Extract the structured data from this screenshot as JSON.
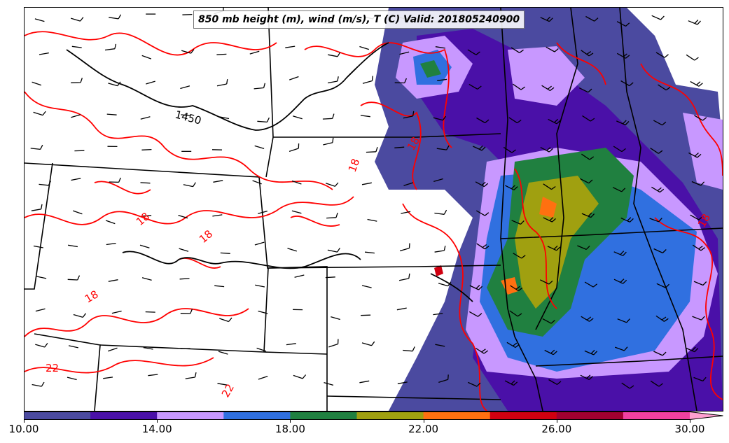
{
  "title": "850 mb height (m), wind (m/s), T (C) Valid: 201805240900",
  "contour_labels": {
    "height": "1450",
    "temps": [
      "18",
      "18",
      "18",
      "18",
      "18",
      "18",
      "22",
      "22",
      "18"
    ]
  },
  "colorbar": {
    "colors": [
      "#4b4aa0",
      "#4a10a8",
      "#c898ff",
      "#3070e0",
      "#208040",
      "#a0a010",
      "#ff7010",
      "#d00010",
      "#a00030",
      "#f040a0"
    ],
    "extend_color": "#ffa0d0",
    "tick_labels": [
      "10.00",
      "14.00",
      "18.00",
      "22.00",
      "26.00",
      "30.00"
    ]
  }
}
